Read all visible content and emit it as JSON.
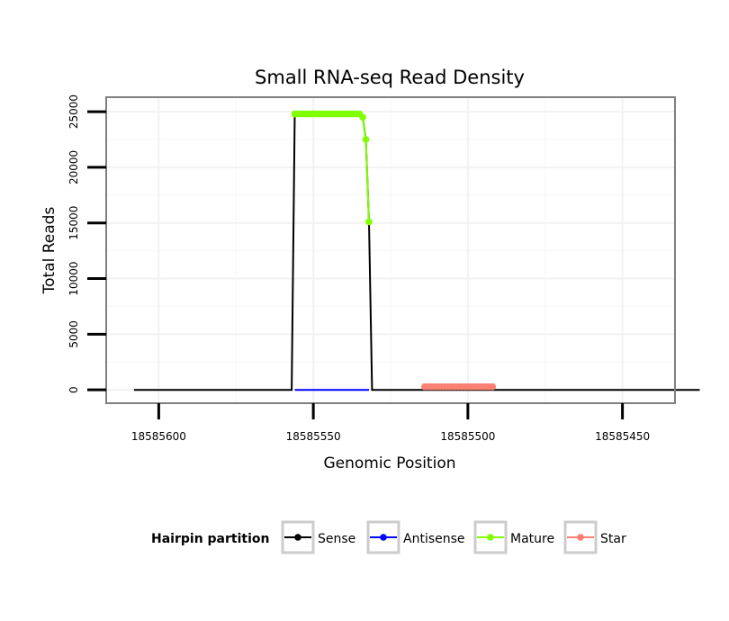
{
  "chart_data": {
    "type": "line",
    "title": "Small RNA-seq Read Density",
    "xlabel": "Genomic Position",
    "ylabel": "Total Reads",
    "xlim": [
      18585617,
      18585433
    ],
    "ylim": [
      -1200,
      26300
    ],
    "x_ticks": [
      18585600,
      18585550,
      18585500,
      18585450
    ],
    "x_tick_labels": [
      "18585600",
      "18585550",
      "18585500",
      "18585450"
    ],
    "y_ticks": [
      0,
      5000,
      10000,
      15000,
      20000,
      25000
    ],
    "y_tick_labels": [
      "0",
      "5000",
      "10000",
      "15000",
      "20000",
      "25000"
    ],
    "grid": true,
    "legend": {
      "title": "Hairpin partition",
      "position": "bottom",
      "entries": [
        {
          "label": "Sense",
          "color": "#000000"
        },
        {
          "label": "Antisense",
          "color": "#0000ff"
        },
        {
          "label": "Mature",
          "color": "#7fff00"
        },
        {
          "label": "Star",
          "color": "#fa8072"
        }
      ]
    },
    "series": [
      {
        "name": "Sense",
        "color": "#000000",
        "points": [
          [
            18585608,
            0
          ],
          [
            18585557,
            0
          ],
          [
            18585556,
            24800
          ],
          [
            18585535,
            24800
          ],
          [
            18585534,
            24500
          ],
          [
            18585533,
            22500
          ],
          [
            18585532,
            15100
          ],
          [
            18585531,
            0
          ],
          [
            18585425,
            0
          ]
        ]
      },
      {
        "name": "Antisense",
        "color": "#0000ff",
        "points": [
          [
            18585556,
            0
          ],
          [
            18585532,
            0
          ]
        ]
      },
      {
        "name": "Mature",
        "color": "#7fff00",
        "points": [
          [
            18585556,
            24800
          ],
          [
            18585555,
            24800
          ],
          [
            18585554,
            24800
          ],
          [
            18585553,
            24800
          ],
          [
            18585552,
            24800
          ],
          [
            18585551,
            24800
          ],
          [
            18585550,
            24800
          ],
          [
            18585549,
            24800
          ],
          [
            18585548,
            24800
          ],
          [
            18585547,
            24800
          ],
          [
            18585546,
            24800
          ],
          [
            18585545,
            24800
          ],
          [
            18585544,
            24800
          ],
          [
            18585543,
            24800
          ],
          [
            18585542,
            24800
          ],
          [
            18585541,
            24800
          ],
          [
            18585540,
            24800
          ],
          [
            18585539,
            24800
          ],
          [
            18585538,
            24800
          ],
          [
            18585537,
            24800
          ],
          [
            18585536,
            24800
          ],
          [
            18585535,
            24800
          ],
          [
            18585534,
            24500
          ],
          [
            18585533,
            22500
          ],
          [
            18585532,
            15100
          ]
        ]
      },
      {
        "name": "Star",
        "color": "#fa8072",
        "points": [
          [
            18585514,
            280
          ],
          [
            18585513,
            280
          ],
          [
            18585512,
            280
          ],
          [
            18585511,
            280
          ],
          [
            18585510,
            280
          ],
          [
            18585509,
            280
          ],
          [
            18585508,
            280
          ],
          [
            18585507,
            280
          ],
          [
            18585506,
            280
          ],
          [
            18585505,
            280
          ],
          [
            18585504,
            280
          ],
          [
            18585503,
            280
          ],
          [
            18585502,
            280
          ],
          [
            18585501,
            280
          ],
          [
            18585500,
            280
          ],
          [
            18585499,
            280
          ],
          [
            18585498,
            280
          ],
          [
            18585497,
            280
          ],
          [
            18585496,
            280
          ],
          [
            18585495,
            280
          ],
          [
            18585494,
            280
          ],
          [
            18585493,
            280
          ],
          [
            18585492,
            280
          ]
        ]
      }
    ]
  }
}
